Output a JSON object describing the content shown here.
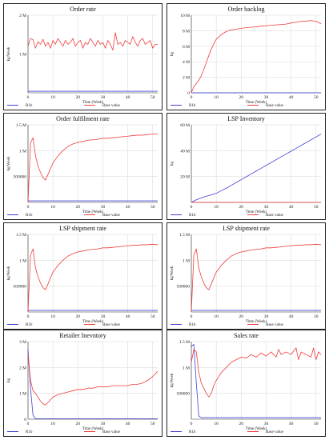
{
  "colors": {
    "r1b": "#4040d8",
    "base": "#f03c3c",
    "axis": "#333333",
    "grid": "#d6d6d6"
  },
  "legend": {
    "series_a": "R1b",
    "series_b": "Base value"
  },
  "xlabel": "Time (Week)",
  "chart_data": [
    {
      "type": "line",
      "title": "Order rate",
      "ylabel": "kg/Week",
      "xlim": [
        0,
        52
      ],
      "ylim": [
        0,
        2000000
      ],
      "xticks": [
        0,
        10,
        20,
        30,
        40,
        50
      ],
      "xtick_labels": [
        "0",
        "10",
        "20",
        "30",
        "40",
        "50"
      ],
      "yticks": [
        1000000,
        2000000
      ],
      "ytick_labels": [
        "1 M",
        "2 M"
      ],
      "series": [
        {
          "name": "R1b",
          "x": [
            0,
            52
          ],
          "y": [
            40000,
            40000
          ]
        },
        {
          "name": "Base value",
          "x": [
            0,
            1,
            2,
            3,
            4,
            5,
            6,
            7,
            8,
            9,
            10,
            11,
            12,
            13,
            14,
            15,
            16,
            17,
            18,
            19,
            20,
            21,
            22,
            23,
            24,
            25,
            26,
            27,
            28,
            29,
            30,
            31,
            32,
            33,
            34,
            35,
            36,
            37,
            38,
            39,
            40,
            41,
            42,
            43,
            44,
            45,
            46,
            47,
            48,
            49,
            50,
            51,
            52
          ],
          "y": [
            1200000,
            1400000,
            1370000,
            1150000,
            1320000,
            1250000,
            1380000,
            1200000,
            1300000,
            1150000,
            1350000,
            1250000,
            1400000,
            1300000,
            1200000,
            1350000,
            1250000,
            1300000,
            1400000,
            1200000,
            1300000,
            1350000,
            1150000,
            1300000,
            1250000,
            1400000,
            1300000,
            1200000,
            1350000,
            1250000,
            1300000,
            1150000,
            1350000,
            1250000,
            1100000,
            1550000,
            1250000,
            1300000,
            1200000,
            1350000,
            1300000,
            1250000,
            1450000,
            1300000,
            1200000,
            1350000,
            1400000,
            1250000,
            1300000,
            1350000,
            1150000,
            1250000,
            1250000
          ]
        }
      ]
    },
    {
      "type": "line",
      "title": "Order backlog",
      "ylabel": "kg",
      "xlim": [
        0,
        52
      ],
      "ylim": [
        0,
        10000000
      ],
      "xticks": [
        0,
        10,
        20,
        30,
        40,
        50
      ],
      "xtick_labels": [
        "0",
        "10",
        "20",
        "30",
        "40",
        "50"
      ],
      "yticks": [
        0,
        2000000,
        4000000,
        6000000,
        8000000,
        10000000
      ],
      "ytick_labels": [
        "0",
        "2 M",
        "4 M",
        "6 M",
        "8 M",
        "10 M"
      ],
      "series": [
        {
          "name": "R1b",
          "x": [
            0,
            52
          ],
          "y": [
            0,
            0
          ]
        },
        {
          "name": "Base value",
          "x": [
            0,
            1,
            2,
            3,
            4,
            5,
            6,
            7,
            8,
            9,
            10,
            12,
            14,
            16,
            18,
            20,
            22,
            24,
            26,
            28,
            30,
            32,
            34,
            36,
            38,
            40,
            42,
            44,
            46,
            48,
            50,
            52
          ],
          "y": [
            0,
            800000,
            1200000,
            1600000,
            2200000,
            3000000,
            3900000,
            4800000,
            5600000,
            6300000,
            6900000,
            7500000,
            7900000,
            8100000,
            8200000,
            8300000,
            8400000,
            8450000,
            8500000,
            8600000,
            8650000,
            8700000,
            8750000,
            8800000,
            8850000,
            9000000,
            9100000,
            9200000,
            9250000,
            9300000,
            9200000,
            8900000
          ]
        }
      ]
    },
    {
      "type": "line",
      "title": "Order fulfilment rate",
      "ylabel": "kg/Week",
      "xlim": [
        0,
        52
      ],
      "ylim": [
        0,
        1500000
      ],
      "xticks": [
        0,
        10,
        20,
        30,
        40,
        50
      ],
      "xtick_labels": [
        "0",
        "10",
        "20",
        "30",
        "40",
        "50"
      ],
      "yticks": [
        500000,
        1000000,
        1500000
      ],
      "ytick_labels": [
        "500000",
        "1 M",
        "1.5 M"
      ],
      "series": [
        {
          "name": "R1b",
          "x": [
            0,
            52
          ],
          "y": [
            30000,
            30000
          ]
        },
        {
          "name": "Base value",
          "x": [
            0,
            1,
            2,
            3,
            4,
            5,
            6,
            7,
            8,
            9,
            10,
            12,
            14,
            16,
            18,
            20,
            22,
            24,
            26,
            28,
            30,
            32,
            34,
            36,
            38,
            40,
            42,
            44,
            46,
            48,
            50,
            52
          ],
          "y": [
            0,
            1150000,
            1250000,
            900000,
            700000,
            580000,
            480000,
            430000,
            540000,
            650000,
            760000,
            900000,
            1000000,
            1080000,
            1130000,
            1160000,
            1180000,
            1200000,
            1210000,
            1220000,
            1240000,
            1240000,
            1250000,
            1260000,
            1270000,
            1280000,
            1290000,
            1300000,
            1300000,
            1310000,
            1320000,
            1320000
          ]
        }
      ]
    },
    {
      "type": "line",
      "title": "LSP Inventory",
      "ylabel": "kg",
      "xlim": [
        0,
        52
      ],
      "ylim": [
        0,
        60000000
      ],
      "xticks": [
        0,
        10,
        20,
        30,
        40,
        50
      ],
      "xtick_labels": [
        "0",
        "10",
        "20",
        "30",
        "40",
        "50"
      ],
      "yticks": [
        20000000,
        40000000,
        60000000
      ],
      "ytick_labels": [
        "20 M",
        "40 M",
        "60 M"
      ],
      "series": [
        {
          "name": "R1b",
          "x": [
            0,
            2,
            4,
            6,
            8,
            10,
            12,
            14,
            16,
            18,
            20,
            22,
            24,
            26,
            28,
            30,
            32,
            34,
            36,
            38,
            40,
            42,
            44,
            46,
            48,
            50,
            52
          ],
          "y": [
            0,
            2000000,
            3500000,
            4800000,
            5800000,
            7000000,
            9000000,
            11000000,
            13200000,
            15400000,
            17600000,
            19800000,
            22000000,
            24200000,
            26400000,
            28600000,
            30800000,
            33000000,
            35200000,
            37400000,
            39600000,
            41800000,
            44000000,
            46200000,
            48400000,
            50600000,
            52800000
          ]
        },
        {
          "name": "Base value",
          "x": [
            0,
            52
          ],
          "y": [
            0,
            0
          ]
        }
      ]
    },
    {
      "type": "line",
      "title": "LSP shipment rate",
      "ylabel": "kg/Week",
      "xlim": [
        0,
        52
      ],
      "ylim": [
        0,
        1500000
      ],
      "xticks": [
        0,
        10,
        20,
        30,
        40,
        50
      ],
      "xtick_labels": [
        "0",
        "10",
        "20",
        "30",
        "40",
        "50"
      ],
      "yticks": [
        500000,
        1000000,
        1500000
      ],
      "ytick_labels": [
        "500000",
        "1 M",
        "1.5 M"
      ],
      "series": [
        {
          "name": "R1b",
          "x": [
            0,
            52
          ],
          "y": [
            30000,
            30000
          ]
        },
        {
          "name": "Base value",
          "x": [
            0,
            1,
            2,
            3,
            4,
            5,
            6,
            7,
            8,
            9,
            10,
            12,
            14,
            16,
            18,
            20,
            22,
            24,
            26,
            28,
            30,
            32,
            34,
            36,
            38,
            40,
            42,
            44,
            46,
            48,
            50,
            52
          ],
          "y": [
            0,
            1100000,
            1220000,
            850000,
            680000,
            560000,
            470000,
            430000,
            540000,
            660000,
            770000,
            900000,
            1000000,
            1080000,
            1130000,
            1160000,
            1180000,
            1200000,
            1210000,
            1220000,
            1240000,
            1240000,
            1250000,
            1260000,
            1270000,
            1280000,
            1290000,
            1290000,
            1300000,
            1300000,
            1310000,
            1300000
          ]
        }
      ]
    },
    {
      "type": "line",
      "title": "LSP shipment rate",
      "ylabel": "kg/Week",
      "xlim": [
        0,
        52
      ],
      "ylim": [
        0,
        1500000
      ],
      "xticks": [
        0,
        10,
        20,
        30,
        40,
        50
      ],
      "xtick_labels": [
        "0",
        "10",
        "20",
        "30",
        "40",
        "50"
      ],
      "yticks": [
        500000,
        1000000,
        1500000
      ],
      "ytick_labels": [
        "500000",
        "1 M",
        "1.5 M"
      ],
      "series": [
        {
          "name": "R1b",
          "x": [
            0,
            52
          ],
          "y": [
            30000,
            30000
          ]
        },
        {
          "name": "Base value",
          "x": [
            0,
            1,
            2,
            3,
            4,
            5,
            6,
            7,
            8,
            9,
            10,
            12,
            14,
            16,
            18,
            20,
            22,
            24,
            26,
            28,
            30,
            32,
            34,
            36,
            38,
            40,
            42,
            44,
            46,
            48,
            50,
            52
          ],
          "y": [
            0,
            1100000,
            1220000,
            850000,
            680000,
            560000,
            470000,
            430000,
            540000,
            660000,
            770000,
            900000,
            1000000,
            1080000,
            1130000,
            1160000,
            1180000,
            1200000,
            1210000,
            1220000,
            1240000,
            1240000,
            1250000,
            1260000,
            1270000,
            1280000,
            1290000,
            1290000,
            1300000,
            1300000,
            1310000,
            1300000
          ]
        }
      ]
    },
    {
      "type": "line",
      "title": "Retailer Inevntory",
      "ylabel": "kg",
      "xlim": [
        0,
        52
      ],
      "ylim": [
        0,
        3000000
      ],
      "xticks": [
        0,
        10,
        20,
        30,
        40,
        50
      ],
      "xtick_labels": [
        "0",
        "10",
        "20",
        "30",
        "40",
        "50"
      ],
      "yticks": [
        0,
        1000000,
        2000000,
        3000000
      ],
      "ytick_labels": [
        "0",
        "1 M",
        "2 M",
        "3 M"
      ],
      "series": [
        {
          "name": "R1b",
          "x": [
            0,
            1,
            2,
            3,
            52
          ],
          "y": [
            2700000,
            1200000,
            150000,
            20000,
            20000
          ]
        },
        {
          "name": "Base value",
          "x": [
            0,
            1,
            2,
            3,
            4,
            5,
            6,
            7,
            8,
            9,
            10,
            12,
            14,
            16,
            18,
            20,
            22,
            24,
            26,
            28,
            30,
            32,
            34,
            36,
            38,
            40,
            42,
            44,
            46,
            48,
            50,
            52
          ],
          "y": [
            2500000,
            1500000,
            1100000,
            1000000,
            850000,
            700000,
            600000,
            550000,
            650000,
            750000,
            850000,
            950000,
            1000000,
            1050000,
            1100000,
            1150000,
            1150000,
            1200000,
            1200000,
            1250000,
            1250000,
            1250000,
            1300000,
            1300000,
            1300000,
            1300000,
            1350000,
            1350000,
            1400000,
            1500000,
            1650000,
            1850000
          ]
        }
      ]
    },
    {
      "type": "line",
      "title": "Sales rate",
      "ylabel": "kg/Week",
      "xlim": [
        0,
        52
      ],
      "ylim": [
        0,
        1500000
      ],
      "xticks": [
        0,
        10,
        20,
        30,
        40,
        50
      ],
      "xtick_labels": [
        "0",
        "10",
        "20",
        "30",
        "40",
        "50"
      ],
      "yticks": [
        500000,
        1000000,
        1500000
      ],
      "ytick_labels": [
        "500000",
        "1 M",
        "1.5 M"
      ],
      "series": [
        {
          "name": "R1b",
          "x": [
            0,
            1,
            2,
            3,
            4,
            52
          ],
          "y": [
            1400000,
            1450000,
            700000,
            60000,
            30000,
            30000
          ]
        },
        {
          "name": "Base value",
          "x": [
            0,
            1,
            2,
            3,
            4,
            5,
            6,
            7,
            8,
            9,
            10,
            12,
            14,
            16,
            18,
            20,
            22,
            24,
            26,
            28,
            30,
            32,
            34,
            35,
            36,
            38,
            40,
            42,
            43,
            44,
            46,
            48,
            49,
            50,
            51,
            52
          ],
          "y": [
            1100000,
            1350000,
            1300000,
            900000,
            700000,
            600000,
            500000,
            430000,
            500000,
            650000,
            750000,
            900000,
            1000000,
            1100000,
            1150000,
            1200000,
            1180000,
            1250000,
            1200000,
            1280000,
            1220000,
            1300000,
            1200000,
            1350000,
            1250000,
            1300000,
            1250000,
            1380000,
            1150000,
            1300000,
            1250000,
            1200000,
            1380000,
            1150000,
            1300000,
            1250000
          ]
        }
      ]
    }
  ]
}
